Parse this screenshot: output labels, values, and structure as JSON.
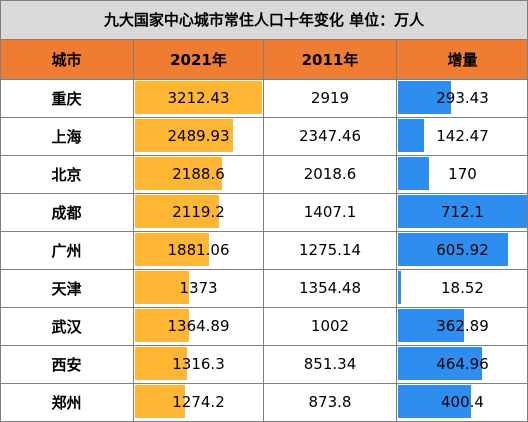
{
  "title": "九大国家中心城市常住人口十年变化   单位：万人",
  "headers": [
    "城市",
    "2021年",
    "2011年",
    "增量"
  ],
  "colors": {
    "header_bg": "#ef7d31",
    "title_bg": "#d9d9d9",
    "bar_2021": "#ffb733",
    "bar_increase": "#2d8ef0"
  },
  "chart_data": {
    "type": "table",
    "title": "九大国家中心城市常住人口十年变化   单位：万人",
    "columns": [
      "城市",
      "2021年",
      "2011年",
      "增量"
    ],
    "rows": [
      {
        "city": "重庆",
        "y2021": "3212.43",
        "y2011": "2919",
        "increase": "293.43"
      },
      {
        "city": "上海",
        "y2021": "2489.93",
        "y2011": "2347.46",
        "increase": "142.47"
      },
      {
        "city": "北京",
        "y2021": "2188.6",
        "y2011": "2018.6",
        "increase": "170"
      },
      {
        "city": "成都",
        "y2021": "2119.2",
        "y2011": "1407.1",
        "increase": "712.1"
      },
      {
        "city": "广州",
        "y2021": "1881.06",
        "y2011": "1275.14",
        "increase": "605.92"
      },
      {
        "city": "天津",
        "y2021": "1373",
        "y2011": "1354.48",
        "increase": "18.52"
      },
      {
        "city": "武汉",
        "y2021": "1364.89",
        "y2011": "1002",
        "increase": "362.89"
      },
      {
        "city": "西安",
        "y2021": "1316.3",
        "y2011": "851.34",
        "increase": "464.96"
      },
      {
        "city": "郑州",
        "y2021": "1274.2",
        "y2011": "873.8",
        "increase": "400.4"
      }
    ]
  }
}
